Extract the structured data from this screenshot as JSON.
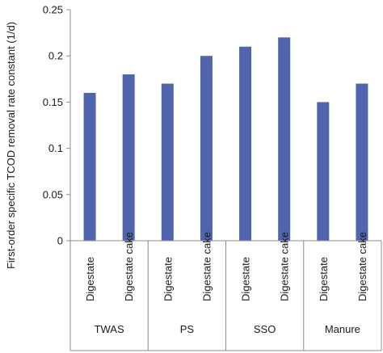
{
  "chart_data": {
    "type": "bar",
    "title": "",
    "xlabel": "",
    "ylabel": "First-order specific TCOD removal rate constant (1/d)",
    "ylim": [
      0,
      0.25
    ],
    "yticks": [
      "0",
      "0.05",
      "0.1",
      "0.15",
      "0.2",
      "0.25"
    ],
    "grid": false,
    "legend": "none",
    "bar_color": "#4f66ad",
    "groups": [
      {
        "name": "TWAS",
        "categories": [
          "Digestate",
          "Digestate cake"
        ],
        "values": [
          0.16,
          0.18
        ]
      },
      {
        "name": "PS",
        "categories": [
          "Digestate",
          "Digestate cake"
        ],
        "values": [
          0.17,
          0.2
        ]
      },
      {
        "name": "SSO",
        "categories": [
          "Digestate",
          "Digestate cake"
        ],
        "values": [
          0.21,
          0.22
        ]
      },
      {
        "name": "Manure",
        "categories": [
          "Digestate",
          "Digestate cake"
        ],
        "values": [
          0.15,
          0.17
        ]
      }
    ]
  }
}
